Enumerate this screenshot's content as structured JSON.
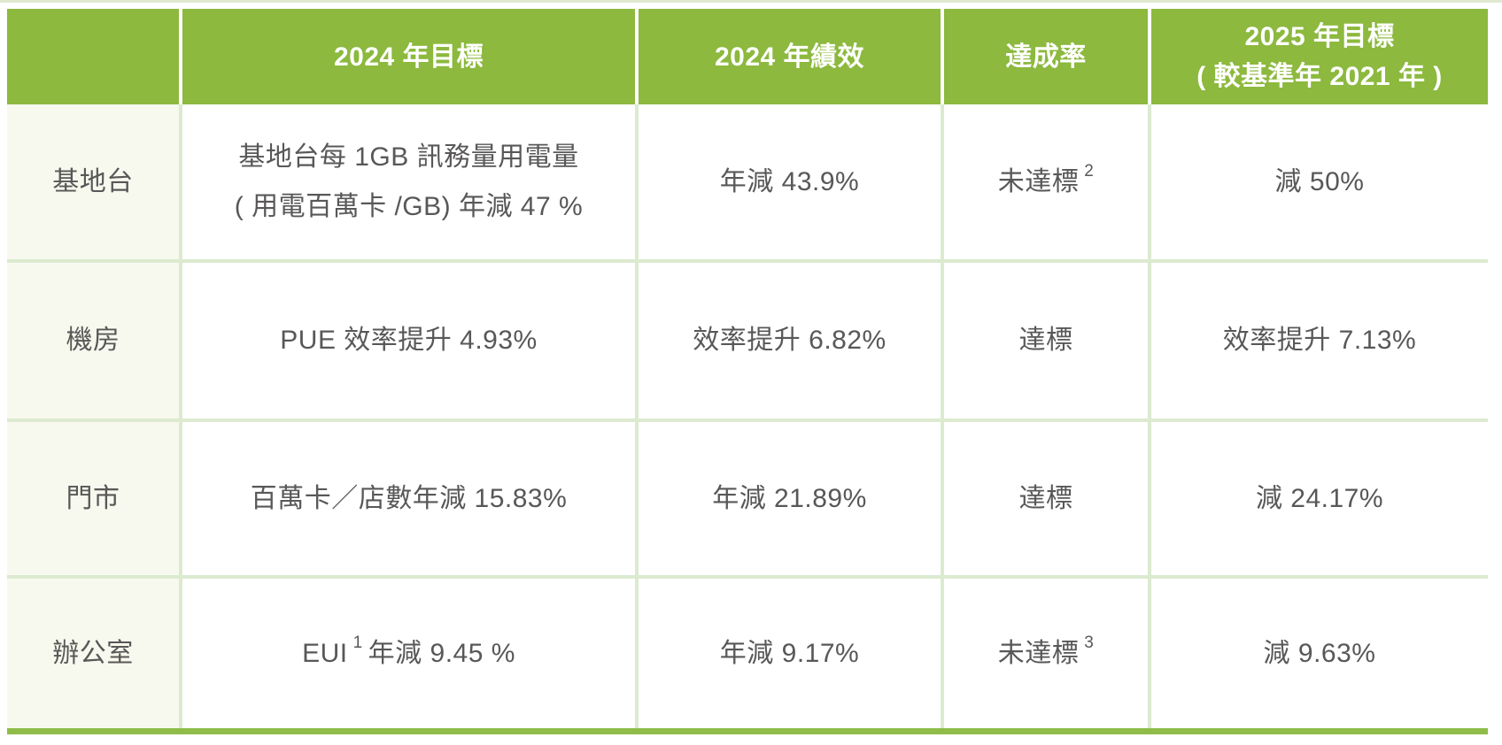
{
  "colors": {
    "header_green": "#8cb93e",
    "grid_line_green": "#dcead0",
    "row_header_cream": "#f7f9ee",
    "bottom_bar_green": "#90bc49",
    "header_text": "#ffffff",
    "body_text": "#595757"
  },
  "table": {
    "header": {
      "corner": "",
      "col_target_2024": "2024 年目標",
      "col_performance_2024": "2024 年績效",
      "col_achievement": "達成率",
      "col_target_2025_line1": "2025 年目標",
      "col_target_2025_line2": "( 較基準年 2021 年 )"
    },
    "rows": [
      {
        "category": "基地台",
        "target_line1": "基地台每 1GB 訊務量用電量",
        "target_line2": "( 用電百萬卡 /GB) 年減 47 %",
        "performance": "年減 43.9%",
        "achievement": "未達標",
        "achievement_sup": "2",
        "target_2025": "減 50%"
      },
      {
        "category": "機房",
        "target_line1": "PUE 效率提升 4.93%",
        "target_line2": "",
        "performance": "效率提升 6.82%",
        "achievement": "達標",
        "achievement_sup": "",
        "target_2025": "效率提升 7.13%"
      },
      {
        "category": "門市",
        "target_line1": "百萬卡／店數年減 15.83%",
        "target_line2": "",
        "performance": "年減 21.89%",
        "achievement": "達標",
        "achievement_sup": "",
        "target_2025": "減 24.17%"
      },
      {
        "category": "辦公室",
        "target_pre": "EUI",
        "target_sup": "1",
        "target_post": " 年減 9.45 %",
        "performance": "年減 9.17%",
        "achievement": "未達標",
        "achievement_sup": "3",
        "target_2025": "減 9.63%"
      }
    ]
  }
}
